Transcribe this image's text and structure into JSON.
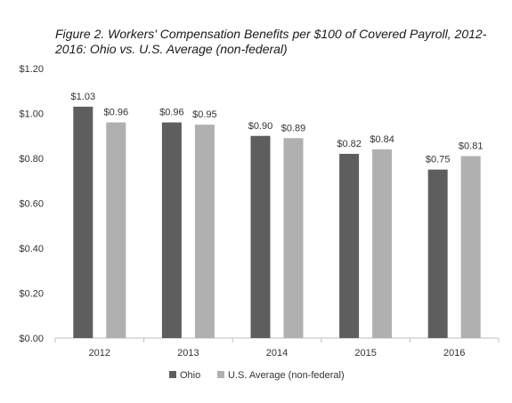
{
  "chart_data": {
    "type": "bar",
    "title": "Figure 2. Workers' Compensation Benefits per $100 of Covered Payroll, 2012-2016: Ohio vs. U.S. Average (non-federal)",
    "categories": [
      "2012",
      "2013",
      "2014",
      "2015",
      "2016"
    ],
    "series": [
      {
        "name": "Ohio",
        "color": "#5e5e5e",
        "values": [
          1.03,
          0.96,
          0.9,
          0.82,
          0.75
        ],
        "labels": [
          "$1.03",
          "$0.96",
          "$0.90",
          "$0.82",
          "$0.75"
        ]
      },
      {
        "name": "U.S. Average (non-federal)",
        "color": "#b0b0b0",
        "values": [
          0.96,
          0.95,
          0.89,
          0.84,
          0.81
        ],
        "labels": [
          "$0.96",
          "$0.95",
          "$0.89",
          "$0.84",
          "$0.81"
        ]
      }
    ],
    "ylim": [
      0,
      1.2
    ],
    "yticks": [
      "$0.00",
      "$0.20",
      "$0.40",
      "$0.60",
      "$0.80",
      "$1.00",
      "$1.20"
    ],
    "xlabel": "",
    "ylabel": "",
    "grid": false,
    "legend_position": "bottom-center"
  }
}
